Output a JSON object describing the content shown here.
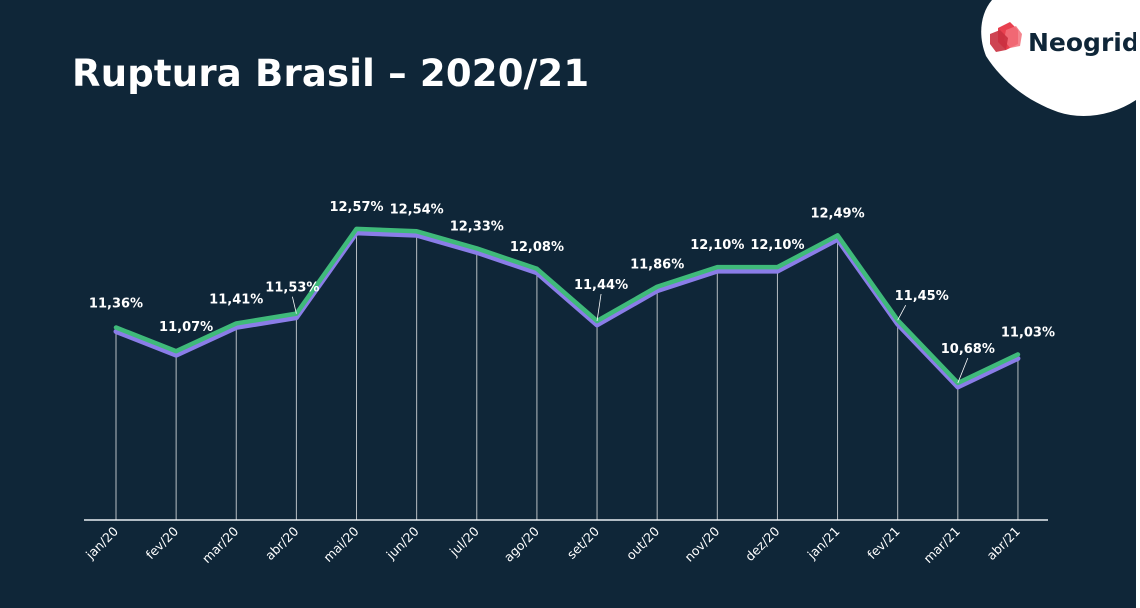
{
  "header": {
    "title": "Ruptura Brasil – 2020/21"
  },
  "logo": {
    "name": "Neogrid",
    "icon": "neogrid-logo-icon"
  },
  "colors": {
    "background": "#0f2638",
    "line_primary": "#3fba7a",
    "line_shadow": "#8a7de8",
    "logo_red": "#e8404f",
    "text": "#ffffff"
  },
  "chart_data": {
    "type": "line",
    "title": "Ruptura Brasil – 2020/21",
    "xlabel": "",
    "ylabel": "",
    "ylim": [
      9.0,
      12.85
    ],
    "grid": false,
    "categories": [
      "jan/20",
      "fev/20",
      "mar/20",
      "abr/20",
      "mai/20",
      "jun/20",
      "jul/20",
      "ago/20",
      "set/20",
      "out/20",
      "nov/20",
      "dez/20",
      "jan/21",
      "fev/21",
      "mar/21",
      "abr/21"
    ],
    "values": [
      11.36,
      11.07,
      11.41,
      11.53,
      12.57,
      12.54,
      12.33,
      12.08,
      11.44,
      11.86,
      12.1,
      12.1,
      12.49,
      11.45,
      10.68,
      11.03
    ],
    "labels": [
      "11,36%",
      "11,07%",
      "11,41%",
      "11,53%",
      "12,57%",
      "12,54%",
      "12,33%",
      "12,08%",
      "11,44%",
      "11,86%",
      "12,10%",
      "12,10%",
      "12,49%",
      "11,45%",
      "10,68%",
      "11,03%"
    ]
  }
}
